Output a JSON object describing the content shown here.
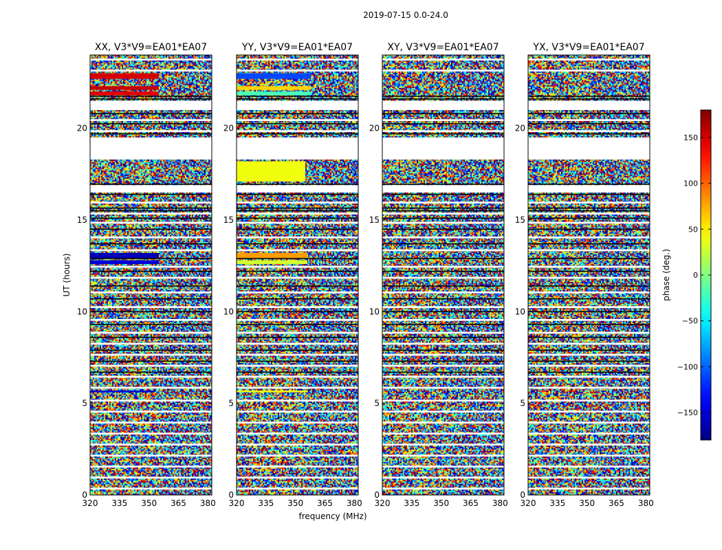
{
  "chart_data": {
    "type": "heatmap",
    "suptitle": "2019-07-15 0.0-24.0",
    "xlabel": "frequency (MHz)",
    "ylabel": "UT (hours)",
    "xlim": [
      320,
      382
    ],
    "ylim": [
      0,
      24
    ],
    "xticks": [
      320,
      335,
      350,
      365,
      380
    ],
    "yticks": [
      0,
      5,
      10,
      15,
      20
    ],
    "colormap": "jet",
    "colorbar": {
      "label": "phase (deg.)",
      "range": [
        -180,
        180
      ],
      "ticks": [
        150,
        100,
        50,
        0,
        -50,
        -100,
        -150
      ],
      "tick_labels": [
        "150",
        "100",
        "50",
        "0",
        "−50",
        "−100",
        "−150"
      ]
    },
    "panels": [
      {
        "title": "XX, V3*V9=EA01*EA07",
        "coherent_bands": [
          {
            "t0": 22.7,
            "t1": 23.0,
            "fcut": 355,
            "phase": 150
          },
          {
            "t0": 22.1,
            "t1": 22.3,
            "fcut": 355,
            "phase": 155
          },
          {
            "t0": 21.8,
            "t1": 22.0,
            "fcut": 355,
            "phase": 145
          },
          {
            "t0": 12.9,
            "t1": 13.2,
            "fcut": 355,
            "phase": -160
          },
          {
            "t0": 12.6,
            "t1": 12.8,
            "fcut": 355,
            "phase": -150
          },
          {
            "t0": 5.6,
            "t1": 5.7,
            "fcut": 353,
            "phase": -150
          }
        ]
      },
      {
        "title": "YY, V3*V9=EA01*EA07",
        "coherent_bands": [
          {
            "t0": 22.7,
            "t1": 23.0,
            "fcut": 358,
            "phase": -110
          },
          {
            "t0": 22.1,
            "t1": 22.3,
            "fcut": 358,
            "phase": 60
          },
          {
            "t0": 21.8,
            "t1": 22.0,
            "fcut": 358,
            "phase": -20
          },
          {
            "t0": 17.1,
            "t1": 18.2,
            "fcut": 355,
            "phase": 40
          },
          {
            "t0": 12.9,
            "t1": 13.2,
            "fcut": 356,
            "phase": 80
          },
          {
            "t0": 12.6,
            "t1": 12.8,
            "fcut": 356,
            "phase": 30
          },
          {
            "t0": 5.6,
            "t1": 5.7,
            "fcut": 356,
            "phase": 40
          }
        ]
      },
      {
        "title": "XY, V3*V9=EA01*EA07",
        "coherent_bands": []
      },
      {
        "title": "YX, V3*V9=EA01*EA07",
        "coherent_bands": []
      }
    ],
    "gaps_hours": [
      [
        0.3,
        0.4
      ],
      [
        0.9,
        1.0
      ],
      [
        1.5,
        1.6
      ],
      [
        2.1,
        2.2
      ],
      [
        2.7,
        2.8
      ],
      [
        3.3,
        3.4
      ],
      [
        3.9,
        4.0
      ],
      [
        4.5,
        4.6
      ],
      [
        5.1,
        5.2
      ],
      [
        5.8,
        5.9
      ],
      [
        6.4,
        6.5
      ],
      [
        7.0,
        7.1
      ],
      [
        7.6,
        7.7
      ],
      [
        8.2,
        8.3
      ],
      [
        8.8,
        8.9
      ],
      [
        9.5,
        9.6
      ],
      [
        10.2,
        10.3
      ],
      [
        11.0,
        11.1
      ],
      [
        11.8,
        11.9
      ],
      [
        12.4,
        12.5
      ],
      [
        13.3,
        13.4
      ],
      [
        14.0,
        14.1
      ],
      [
        14.8,
        14.9
      ],
      [
        15.3,
        15.4
      ],
      [
        15.9,
        16.0
      ],
      [
        16.5,
        16.9
      ],
      [
        18.3,
        19.5
      ],
      [
        19.8,
        19.9
      ],
      [
        20.4,
        20.5
      ],
      [
        21.0,
        21.5
      ],
      [
        23.1,
        23.2
      ],
      [
        23.7,
        23.8
      ]
    ],
    "dark_lines_hours": [
      6.7,
      7.3,
      7.9,
      8.6,
      9.3,
      10.0,
      10.7,
      11.4,
      12.2,
      12.9,
      13.7,
      14.5,
      15.1,
      15.5,
      15.65,
      16.4,
      16.95,
      19.7,
      20.25,
      20.8,
      21.6,
      21.75
    ]
  }
}
